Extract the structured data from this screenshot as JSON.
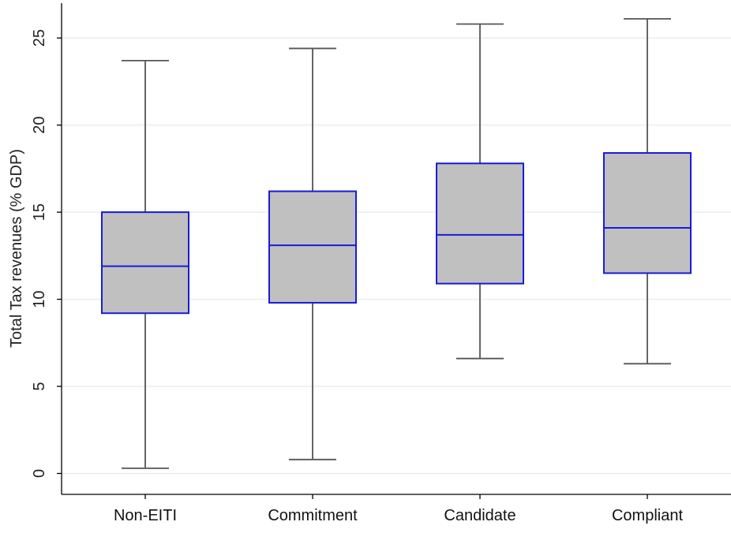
{
  "chart_data": {
    "type": "box",
    "title": "",
    "xlabel": "",
    "ylabel": "Total Tax revenues (% GDP)",
    "ylim": [
      -1.2,
      27
    ],
    "yticks": [
      0,
      5,
      10,
      15,
      20,
      25
    ],
    "grid": true,
    "legend": "none",
    "categories": [
      "Non-EITI",
      "Commitment",
      "Candidate",
      "Compliant"
    ],
    "boxes": [
      {
        "label": "Non-EITI",
        "whisker_low": 0.3,
        "q1": 9.2,
        "median": 11.9,
        "q3": 15.0,
        "whisker_high": 23.7
      },
      {
        "label": "Commitment",
        "whisker_low": 0.8,
        "q1": 9.8,
        "median": 13.1,
        "q3": 16.2,
        "whisker_high": 24.4
      },
      {
        "label": "Candidate",
        "whisker_low": 6.6,
        "q1": 10.9,
        "median": 13.7,
        "q3": 17.8,
        "whisker_high": 25.8
      },
      {
        "label": "Compliant",
        "whisker_low": 6.3,
        "q1": 11.5,
        "median": 14.1,
        "q3": 18.4,
        "whisker_high": 26.1
      }
    ],
    "colors": {
      "box_fill": "#c0c0c0",
      "box_edge": "#1a1adb",
      "whisker": "#555555",
      "grid": "#e6eef2",
      "axis": "#000000"
    }
  }
}
